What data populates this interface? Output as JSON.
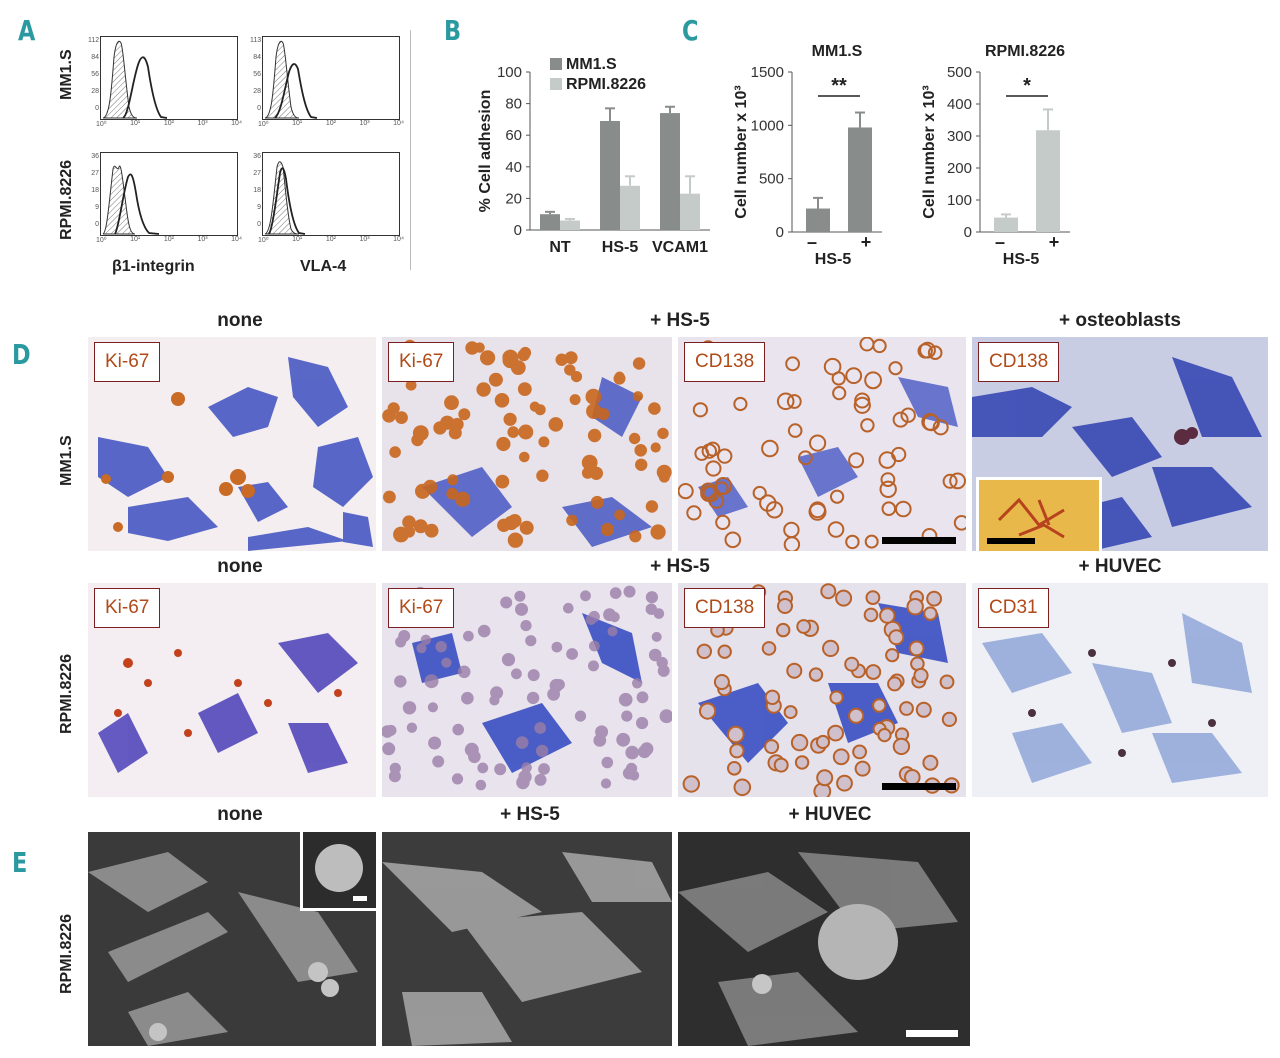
{
  "panels": {
    "A": {
      "letter": "A",
      "row_labels": [
        "MM1.S",
        "RPMI.8226"
      ],
      "x_labels": [
        "β1-integrin",
        "VLA-4"
      ],
      "y_ticks_top": [
        "112",
        "84",
        "56",
        "28",
        "0"
      ],
      "y_ticks_top_right": [
        "113",
        "84",
        "56",
        "28",
        "0"
      ],
      "y_ticks_bottom": [
        "36",
        "27",
        "18",
        "9",
        "0"
      ],
      "x_ticks": [
        "10⁰",
        "10¹",
        "10²",
        "10³",
        "10⁴"
      ]
    },
    "B": {
      "letter": "B"
    },
    "C": {
      "letter": "C"
    },
    "D": {
      "letter": "D",
      "row_labels": [
        "MM1.S",
        "RPMI.8226"
      ],
      "row1_titles": {
        "none": "none",
        "hs5": "+ HS-5",
        "osteo": "+ osteoblasts"
      },
      "row2_titles": {
        "none": "none",
        "hs5": "+ HS-5",
        "huvec": "+ HUVEC"
      },
      "row1_stains": [
        "Ki-67",
        "Ki-67",
        "CD138",
        "CD138"
      ],
      "row2_stains": [
        "Ki-67",
        "Ki-67",
        "CD138",
        "CD31"
      ]
    },
    "E": {
      "letter": "E",
      "row_label": "RPMI.8226",
      "titles": [
        "none",
        "+ HS-5",
        "+ HUVEC"
      ]
    }
  },
  "chart_data": [
    {
      "panel": "B",
      "type": "bar",
      "categories": [
        "NT",
        "HS-5",
        "VCAM1"
      ],
      "ylabel": "% Cell adhesion",
      "ylim": [
        0,
        100
      ],
      "yticks": [
        0,
        20,
        40,
        60,
        80,
        100
      ],
      "legend_position": "top",
      "series": [
        {
          "name": "MM1.S",
          "color": "#888c8a",
          "values": [
            10,
            69,
            74
          ],
          "errors": [
            1.5,
            8,
            4
          ]
        },
        {
          "name": "RPMI.8226",
          "color": "#c5cbc8",
          "values": [
            6,
            28,
            23
          ],
          "errors": [
            1,
            6,
            11
          ]
        }
      ]
    },
    {
      "panel": "C-left",
      "type": "bar",
      "title": "MM1.S",
      "categories": [
        "–",
        "+"
      ],
      "xlabel": "HS-5",
      "ylabel": "Cell number x 10³",
      "ylim": [
        0,
        1500
      ],
      "yticks": [
        0,
        500,
        1000,
        1500
      ],
      "significance": "**",
      "series": [
        {
          "color": "#888c8a",
          "values": [
            220,
            980
          ],
          "errors": [
            100,
            140
          ]
        }
      ]
    },
    {
      "panel": "C-right",
      "type": "bar",
      "title": "RPMI.8226",
      "categories": [
        "–",
        "+"
      ],
      "xlabel": "HS-5",
      "ylabel": "Cell number x 10³",
      "ylim": [
        0,
        500
      ],
      "yticks": [
        0,
        100,
        200,
        300,
        400,
        500
      ],
      "significance": "*",
      "series": [
        {
          "color": "#c5cbc8",
          "values": [
            45,
            318
          ],
          "errors": [
            10,
            65
          ]
        }
      ]
    }
  ]
}
